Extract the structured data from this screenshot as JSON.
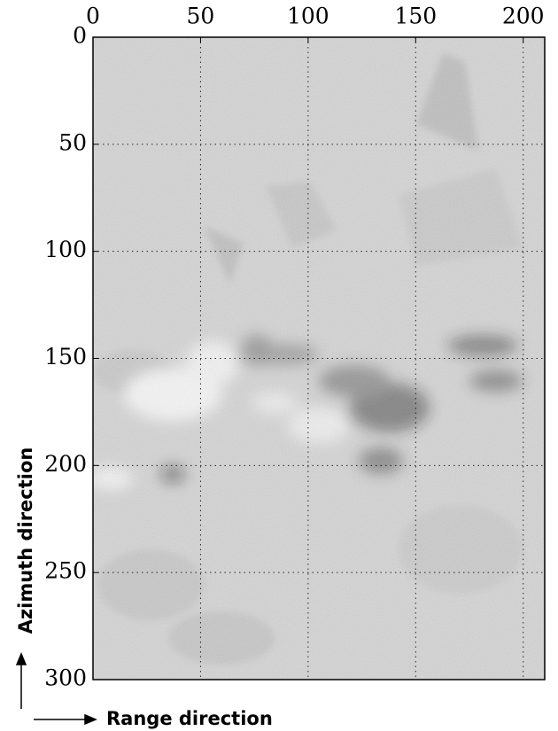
{
  "chart_data": {
    "type": "image",
    "xlabel": "Range direction",
    "ylabel": "Azimuth direction",
    "xlim": [
      0,
      210
    ],
    "ylim": [
      0,
      300
    ],
    "invert_y": true,
    "xticks": [
      0,
      50,
      100,
      150,
      200
    ],
    "yticks": [
      0,
      50,
      100,
      150,
      200,
      250,
      300
    ],
    "grid": true,
    "colormap": "gray"
  }
}
